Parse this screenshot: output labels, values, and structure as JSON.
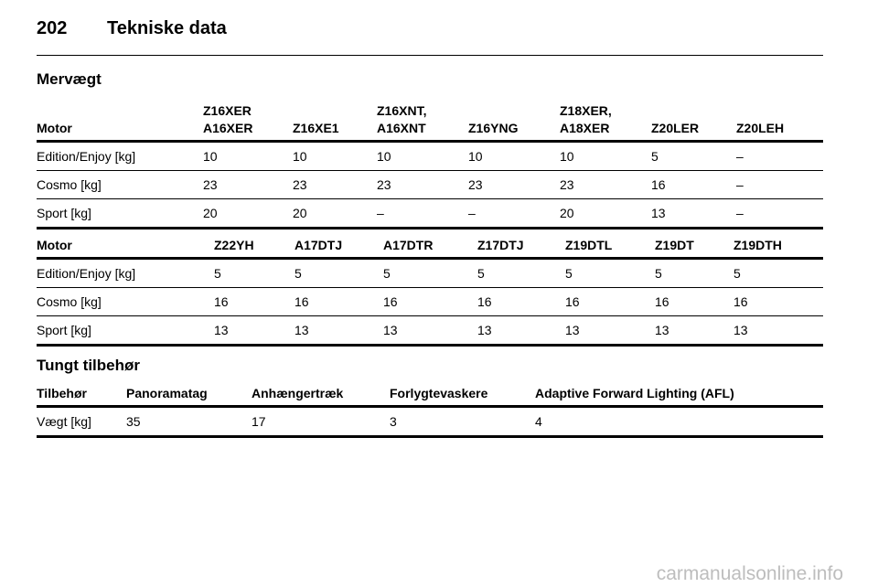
{
  "header": {
    "page_number": "202",
    "title": "Tekniske data"
  },
  "section1": {
    "title": "Mervægt",
    "table1": {
      "columns": [
        "Motor",
        "Z16XER\nA16XER",
        "Z16XE1",
        "Z16XNT,\nA16XNT",
        "Z16YNG",
        "Z18XER,\nA18XER",
        "Z20LER",
        "Z20LEH"
      ],
      "rows": [
        [
          "Edition/Enjoy [kg]",
          "10",
          "10",
          "10",
          "10",
          "10",
          "5",
          "–"
        ],
        [
          "Cosmo [kg]",
          "23",
          "23",
          "23",
          "23",
          "23",
          "16",
          "–"
        ],
        [
          "Sport [kg]",
          "20",
          "20",
          "–",
          "–",
          "20",
          "13",
          "–"
        ]
      ]
    },
    "table2": {
      "columns": [
        "Motor",
        "Z22YH",
        "A17DTJ",
        "A17DTR",
        "Z17DTJ",
        "Z19DTL",
        "Z19DT",
        "Z19DTH"
      ],
      "rows": [
        [
          "Edition/Enjoy [kg]",
          "5",
          "5",
          "5",
          "5",
          "5",
          "5",
          "5"
        ],
        [
          "Cosmo [kg]",
          "16",
          "16",
          "16",
          "16",
          "16",
          "16",
          "16"
        ],
        [
          "Sport [kg]",
          "13",
          "13",
          "13",
          "13",
          "13",
          "13",
          "13"
        ]
      ]
    }
  },
  "section2": {
    "title": "Tungt tilbehør",
    "table": {
      "columns": [
        "Tilbehør",
        "Panoramatag",
        "Anhængertræk",
        "Forlygtevaskere",
        "Adaptive Forward Lighting (AFL)"
      ],
      "rows": [
        [
          "Vægt [kg]",
          "35",
          "17",
          "3",
          "4"
        ]
      ]
    }
  },
  "watermark": "carmanualsonline.info"
}
